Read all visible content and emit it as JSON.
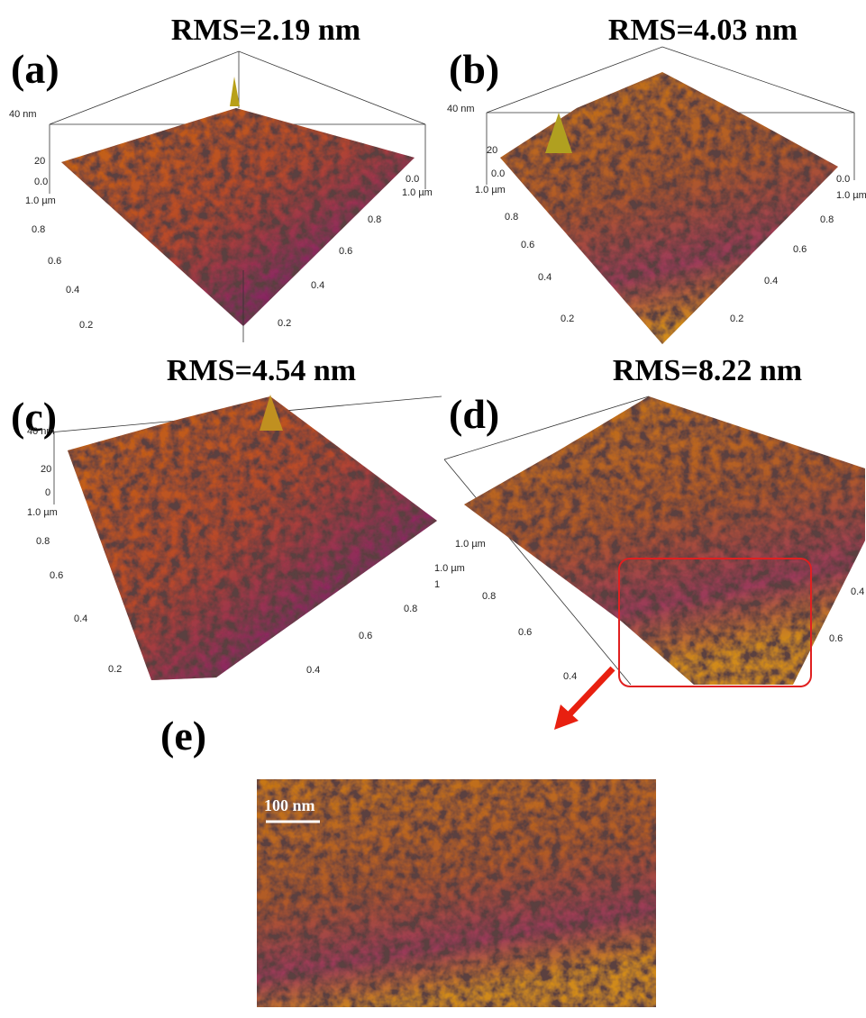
{
  "panels": [
    {
      "label": "(a)",
      "title": "RMS=2.19 nm",
      "axis_labels": [
        "40 nm",
        "20",
        "0.0",
        "1.0 µm",
        "0.8",
        "0.6",
        "0.4",
        "0.2",
        "0.0",
        "1.0 µm",
        "0.8",
        "0.6",
        "0.4",
        "0.2"
      ]
    },
    {
      "label": "(b)",
      "title": "RMS=4.03 nm",
      "axis_labels": [
        "40 nm",
        "20",
        "0.0",
        "1.0 µm",
        "0.8",
        "0.6",
        "0.4",
        "0.2",
        "0.0",
        "1.0 µm",
        "0.8",
        "0.6",
        "0.4",
        "0.2"
      ]
    },
    {
      "label": "(c)",
      "title": "RMS=4.54 nm",
      "axis_labels": [
        "40 nm",
        "20",
        "0",
        "1.0 µm",
        "0.8",
        "0.6",
        "0.4",
        "0.2",
        "1",
        "1.0 µm",
        "0.8",
        "0.6",
        "0.4"
      ]
    },
    {
      "label": "(d)",
      "title": "RMS=8.22 nm",
      "axis_labels": [
        "1.0 µm",
        "0.8",
        "0.6",
        "0.4",
        "0.4",
        "0.6"
      ]
    },
    {
      "label": "(e)",
      "scale_bar": "100 nm"
    }
  ]
}
